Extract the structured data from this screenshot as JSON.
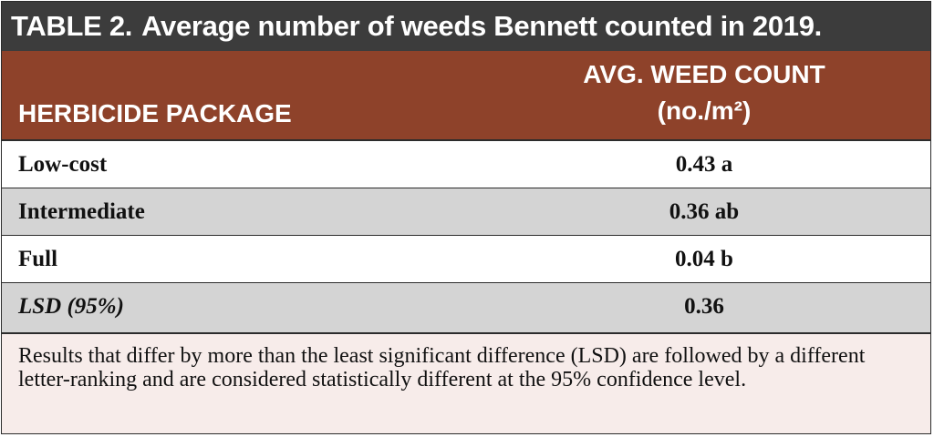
{
  "table": {
    "label": "TABLE 2.",
    "title": "Average number of weeds Bennett counted in 2019.",
    "header": {
      "col1": "HERBICIDE PACKAGE",
      "col2_line1": "AVG. WEED COUNT",
      "col2_line2": "(no./m²)"
    },
    "rows": [
      {
        "package": "Low-cost",
        "value": "0.43 a"
      },
      {
        "package": "Intermediate",
        "value": "0.36 ab"
      },
      {
        "package": "Full",
        "value": "0.04 b"
      },
      {
        "package": "LSD (95%)",
        "value": "0.36"
      }
    ],
    "note": "Results that differ by more than the least significant difference (LSD) are followed by a different letter-ranking and are considered statistically different at the 95% confidence level."
  },
  "colors": {
    "title_bg": "#3c3c3c",
    "header_bg": "#8e422a",
    "row_alt_bg": "#d4d4d4",
    "note_bg": "#f7ecea"
  }
}
